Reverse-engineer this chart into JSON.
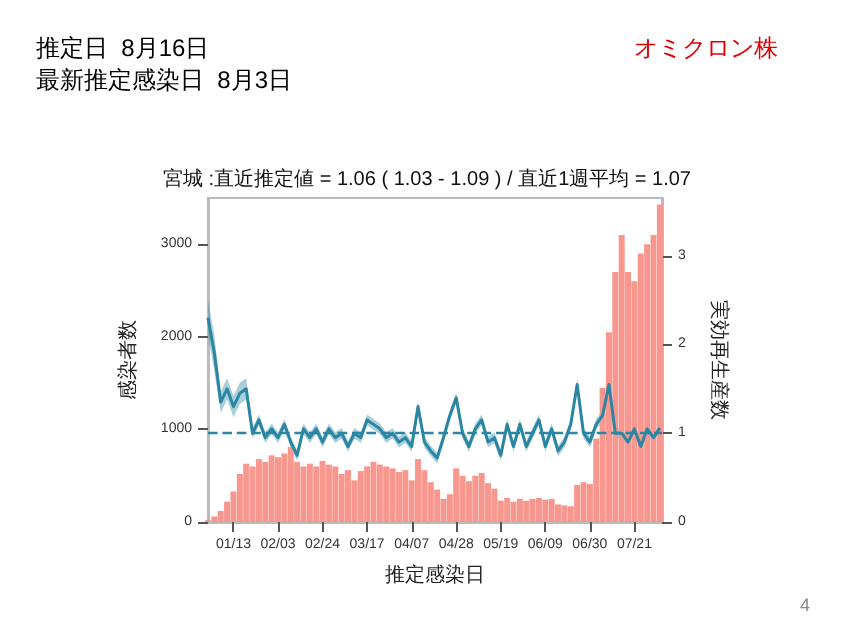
{
  "chart_data": {
    "type": "bar",
    "title": "宮城 :直近推定値 = 1.06 ( 1.03 - 1.09 ) / 直近1週平均 = 1.07",
    "xlabel": "推定感染日",
    "ylabel": "感染者数",
    "y2label": "実効再生産数",
    "annotations": [
      "推定日  8月16日",
      "最新推定感染日  8月3日",
      "オミクロン株",
      "4"
    ],
    "x": [
      "--01-01",
      "--01-04",
      "--01-07",
      "--01-10",
      "--01-13",
      "--01-16",
      "--01-19",
      "--01-22",
      "--01-25",
      "--01-28",
      "--01-31",
      "--02-03",
      "--02-06",
      "--02-09",
      "--02-12",
      "--02-15",
      "--02-18",
      "--02-21",
      "--02-24",
      "--02-27",
      "--03-02",
      "--03-05",
      "--03-08",
      "--03-11",
      "--03-14",
      "--03-17",
      "--03-20",
      "--03-23",
      "--03-26",
      "--03-29",
      "--04-01",
      "--04-04",
      "--04-07",
      "--04-10",
      "--04-13",
      "--04-16",
      "--04-19",
      "--04-22",
      "--04-25",
      "--04-28",
      "--05-01",
      "--05-04",
      "--05-07",
      "--05-10",
      "--05-13",
      "--05-16",
      "--05-19",
      "--05-22",
      "--05-25",
      "--05-28",
      "--05-31",
      "--06-03",
      "--06-06",
      "--06-09",
      "--06-12",
      "--06-15",
      "--06-18",
      "--06-21",
      "--06-24",
      "--06-27",
      "--06-30",
      "--07-03",
      "--07-06",
      "--07-09",
      "--07-12",
      "--07-15",
      "--07-18",
      "--07-21",
      "--07-24",
      "--07-27",
      "--07-30",
      "--08-02"
    ],
    "series": [
      {
        "color": "#f8978e",
        "values": [
          20,
          60,
          120,
          220,
          330,
          520,
          630,
          600,
          680,
          650,
          720,
          700,
          740,
          810,
          650,
          600,
          630,
          600,
          660,
          620,
          600,
          520,
          560,
          450,
          550,
          600,
          650,
          620,
          600,
          580,
          540,
          560,
          450,
          680,
          560,
          430,
          350,
          250,
          300,
          580,
          500,
          440,
          500,
          530,
          420,
          360,
          230,
          260,
          220,
          250,
          230,
          250,
          260,
          240,
          250,
          190,
          180,
          170,
          400,
          430,
          410,
          900,
          1450,
          2050,
          2700,
          3100,
          2700,
          2600,
          2900,
          3000,
          3100,
          3430
        ]
      },
      {
        "type": "line",
        "axis": "y2",
        "color": "#2b86a3",
        "values": [
          2.3,
          1.9,
          1.35,
          1.5,
          1.3,
          1.45,
          1.5,
          1.0,
          1.15,
          0.95,
          1.05,
          0.95,
          1.1,
          0.9,
          0.75,
          1.05,
          0.95,
          1.05,
          0.9,
          1.05,
          0.95,
          1.0,
          0.85,
          1.0,
          0.95,
          1.15,
          1.1,
          1.05,
          0.95,
          1.0,
          0.9,
          0.95,
          0.85,
          1.3,
          0.9,
          0.8,
          0.72,
          0.95,
          1.2,
          1.4,
          1.0,
          0.85,
          1.05,
          1.15,
          0.9,
          0.95,
          0.75,
          1.1,
          0.85,
          1.1,
          0.85,
          1.0,
          1.15,
          0.85,
          1.05,
          0.8,
          0.9,
          1.1,
          1.55,
          1.0,
          0.9,
          1.1,
          1.2,
          1.55,
          1.0,
          1.0,
          0.9,
          1.05,
          0.85,
          1.05,
          0.95,
          1.06
        ],
        "lower": [
          2.1,
          1.7,
          1.23,
          1.38,
          1.18,
          1.33,
          1.38,
          0.94,
          1.09,
          0.89,
          0.99,
          0.89,
          1.04,
          0.84,
          0.69,
          0.99,
          0.89,
          0.99,
          0.84,
          0.99,
          0.89,
          0.94,
          0.79,
          0.94,
          0.89,
          1.09,
          1.04,
          0.99,
          0.89,
          0.94,
          0.84,
          0.89,
          0.79,
          1.24,
          0.84,
          0.74,
          0.66,
          0.89,
          1.14,
          1.34,
          0.94,
          0.79,
          0.99,
          1.09,
          0.84,
          0.89,
          0.69,
          1.04,
          0.79,
          1.04,
          0.79,
          0.94,
          1.09,
          0.79,
          0.99,
          0.74,
          0.84,
          1.04,
          1.49,
          0.94,
          0.84,
          1.04,
          1.14,
          1.49,
          0.94,
          0.94,
          0.84,
          0.99,
          0.79,
          0.99,
          0.89,
          1.03
        ],
        "upper": [
          2.5,
          2.1,
          1.47,
          1.62,
          1.42,
          1.57,
          1.62,
          1.06,
          1.21,
          1.01,
          1.11,
          1.01,
          1.16,
          0.96,
          0.81,
          1.11,
          1.01,
          1.11,
          0.96,
          1.11,
          1.01,
          1.06,
          0.91,
          1.06,
          1.01,
          1.21,
          1.16,
          1.11,
          1.01,
          1.06,
          0.96,
          1.01,
          0.91,
          1.36,
          0.96,
          0.86,
          0.78,
          1.01,
          1.26,
          1.46,
          1.06,
          0.91,
          1.11,
          1.21,
          0.96,
          1.01,
          0.81,
          1.16,
          0.91,
          1.16,
          0.91,
          1.06,
          1.21,
          0.91,
          1.11,
          0.86,
          0.96,
          1.16,
          1.61,
          1.06,
          0.96,
          1.16,
          1.26,
          1.61,
          1.06,
          1.06,
          0.96,
          1.11,
          0.91,
          1.11,
          1.01,
          1.09
        ]
      }
    ],
    "xlim": [
      "--01-01",
      "--08-03"
    ],
    "xticks": [
      {
        "value": "--01-13",
        "label": "01/13"
      },
      {
        "value": "--02-03",
        "label": "02/03"
      },
      {
        "value": "--02-24",
        "label": "02/24"
      },
      {
        "value": "--03-17",
        "label": "03/17"
      },
      {
        "value": "--04-07",
        "label": "04/07"
      },
      {
        "value": "--04-28",
        "label": "04/28"
      },
      {
        "value": "--05-19",
        "label": "05/19"
      },
      {
        "value": "--06-09",
        "label": "06/09"
      },
      {
        "value": "--06-30",
        "label": "06/30"
      },
      {
        "value": "--07-21",
        "label": "07/21"
      }
    ],
    "ylim": [
      0,
      3500
    ],
    "yticks": [
      0,
      1000,
      2000,
      3000
    ],
    "y2lim": [
      0,
      3.65
    ],
    "y2ticks": [
      0,
      1,
      2,
      3
    ],
    "ref_lines": [
      {
        "axis": "y2",
        "value": 1,
        "color": "#2b86a3",
        "line_style": "dashed"
      }
    ]
  }
}
